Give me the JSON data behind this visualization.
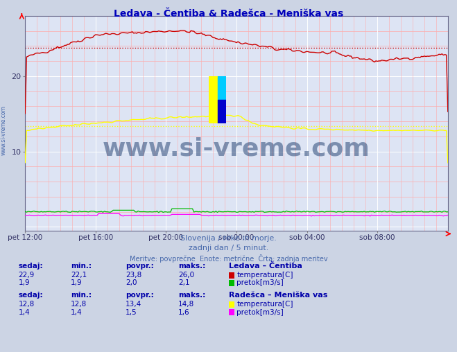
{
  "title": "Ledava - Čentiba & Radešca - Meniška vas",
  "title_color": "#0000bb",
  "bg_color": "#ccd4e4",
  "plot_bg_color": "#dde4f4",
  "grid_color_major": "#ffffff",
  "grid_color_minor": "#ffaaaa",
  "xlabel_ticks": [
    "pet 12:00",
    "pet 16:00",
    "pet 20:00",
    "sob 00:00",
    "sob 04:00",
    "sob 08:00"
  ],
  "yticks": [
    10,
    20
  ],
  "ylim": [
    -0.5,
    28
  ],
  "xlim_max": 288,
  "tick_positions": [
    0,
    48,
    96,
    144,
    192,
    240
  ],
  "watermark": "www.si-vreme.com",
  "watermark_color": "#1a3a6b",
  "watermark_alpha": 0.5,
  "subtitle1": "Slovenija / reke in morje.",
  "subtitle2": "zadnji dan / 5 minut.",
  "subtitle3": "Meritve: povprečne  Enote: metrične  Črta: zadnja meritev",
  "subtitle_color": "#4466aa",
  "table_header_color": "#0000aa",
  "table_value_color": "#0000aa",
  "station1_name": "Ledava – Čentiba",
  "station1_temp_color": "#cc0000",
  "station1_pretok_color": "#00bb00",
  "station1_sedaj": "22,9",
  "station1_min": "22,1",
  "station1_povpr": "23,8",
  "station1_maks": "26,0",
  "station1_pretok_sedaj": "1,9",
  "station1_pretok_min": "1,9",
  "station1_pretok_povpr": "2,0",
  "station1_pretok_maks": "2,1",
  "station2_name": "Radešca – Meniška vas",
  "station2_temp_color": "#ffff00",
  "station2_pretok_color": "#ff00ff",
  "station2_sedaj": "12,8",
  "station2_min": "12,8",
  "station2_povpr": "13,4",
  "station2_maks": "14,8",
  "station2_pretok_sedaj": "1,4",
  "station2_pretok_min": "1,4",
  "station2_pretok_povpr": "1,5",
  "station2_pretok_maks": "1,6",
  "avg1_temp": 23.8,
  "avg2_temp": 13.4,
  "left_label": "www.si-vreme.com"
}
